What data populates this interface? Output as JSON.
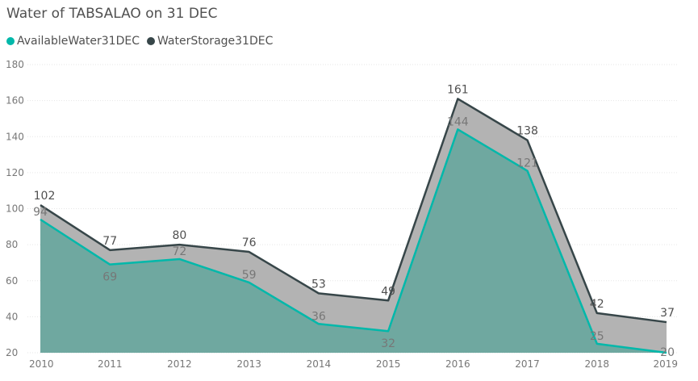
{
  "title": "Water of TABSALAO on 31 DEC",
  "colors": {
    "available": "#01B8AA",
    "available_fill": "#6FA8A0",
    "storage": "#374649",
    "storage_fill": "#B3B3B3",
    "gridline": "#E6E6E6"
  },
  "chart_data": {
    "type": "area",
    "title": "Water of TABSALAO on 31 DEC",
    "xlabel": "",
    "ylabel": "",
    "categories": [
      "2010",
      "2011",
      "2012",
      "2013",
      "2014",
      "2015",
      "2016",
      "2017",
      "2018",
      "2019"
    ],
    "series": [
      {
        "name": "AvailableWater31DEC",
        "values": [
          94,
          69,
          72,
          59,
          36,
          32,
          144,
          121,
          25,
          20
        ]
      },
      {
        "name": "WaterStorage31DEC",
        "values": [
          102,
          77,
          80,
          76,
          53,
          49,
          161,
          138,
          42,
          37
        ]
      }
    ],
    "data_labels": {
      "AvailableWater31DEC": [
        "94",
        "69",
        "72",
        "59",
        "36",
        "32",
        "144",
        "121",
        "25",
        "20"
      ],
      "WaterStorage31DEC": [
        "102",
        "77",
        "80",
        "76",
        "53",
        "49",
        "161",
        "138",
        "42",
        "37"
      ]
    },
    "ylim": [
      20,
      180
    ],
    "yticks": [
      "20",
      "40",
      "60",
      "80",
      "100",
      "120",
      "140",
      "160",
      "180"
    ],
    "grid": true,
    "legend": "top-left"
  }
}
